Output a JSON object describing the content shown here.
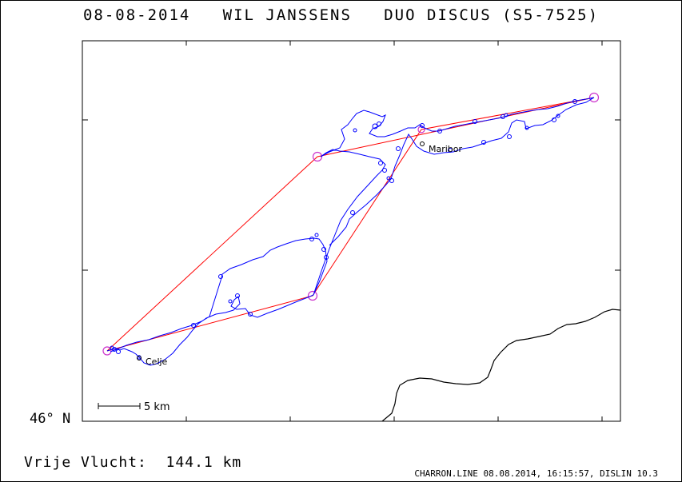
{
  "header": {
    "title": "08-08-2014   WIL JANSSENS   DUO DISCUS (S5-7525)"
  },
  "map": {
    "latitude_label": "46° N",
    "scale_label": "5 km",
    "towns": [
      {
        "name": "Maribor"
      },
      {
        "name": "Celje"
      }
    ],
    "colors": {
      "task_line": "#ff0000",
      "turnpoint": "#cc33cc",
      "track": "#0000ff",
      "border": "#000000"
    }
  },
  "footer": {
    "distance_text": "Vrije Vlucht:  144.1 km",
    "credit": "CHARRON.LINE 08.08.2014, 16:15:57, DISLIN 10.3"
  }
}
